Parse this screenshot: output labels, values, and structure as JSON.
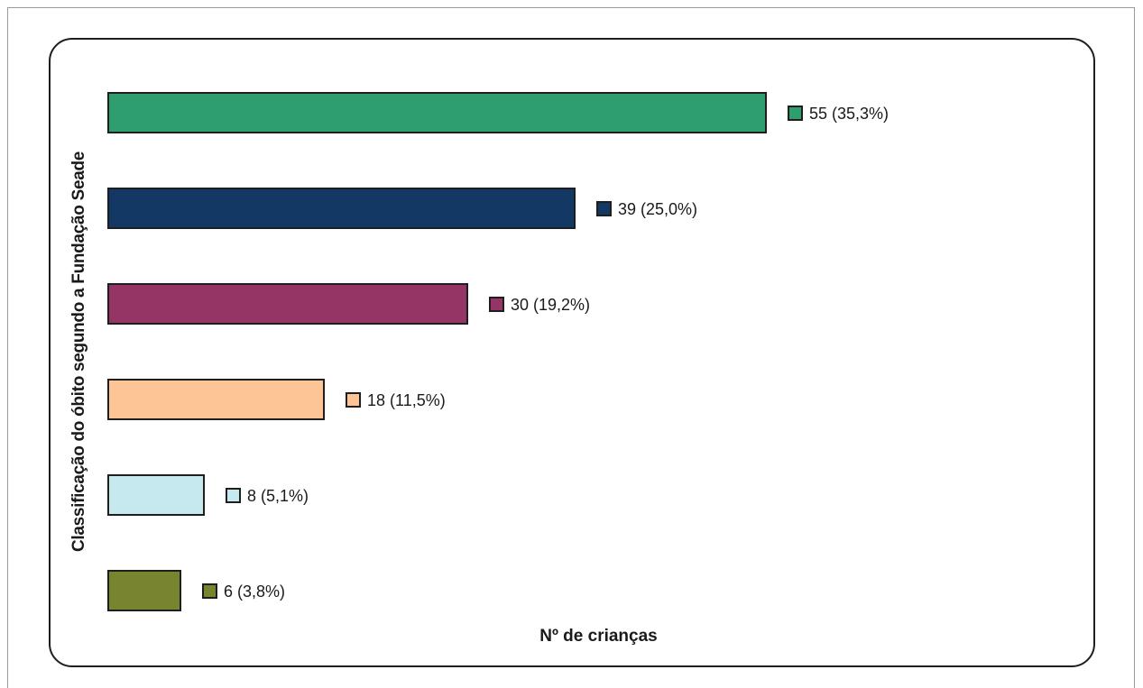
{
  "chart_data": {
    "type": "bar",
    "orientation": "horizontal",
    "title": "",
    "xlabel": "Nº de crianças",
    "ylabel": "Classificação do óbito segundo a Fundação Seade",
    "xlim": [
      0,
      55
    ],
    "grid": false,
    "legend": "none",
    "bars": [
      {
        "value": 55,
        "percent": "35,3%",
        "label": "55 (35,3%)",
        "color": "#2e9e6f"
      },
      {
        "value": 39,
        "percent": "25,0%",
        "label": "39 (25,0%)",
        "color": "#143864"
      },
      {
        "value": 30,
        "percent": "19,2%",
        "label": "30 (19,2%)",
        "color": "#953565"
      },
      {
        "value": 18,
        "percent": "11,5%",
        "label": "18 (11,5%)",
        "color": "#fdc595"
      },
      {
        "value": 8,
        "percent": "5,1%",
        "label": "8 (5,1%)",
        "color": "#c6e8ef"
      },
      {
        "value": 6,
        "percent": "3,8%",
        "label": "6 (3,8%)",
        "color": "#78842e"
      }
    ],
    "values": [
      55,
      39,
      30,
      18,
      8,
      6
    ]
  }
}
